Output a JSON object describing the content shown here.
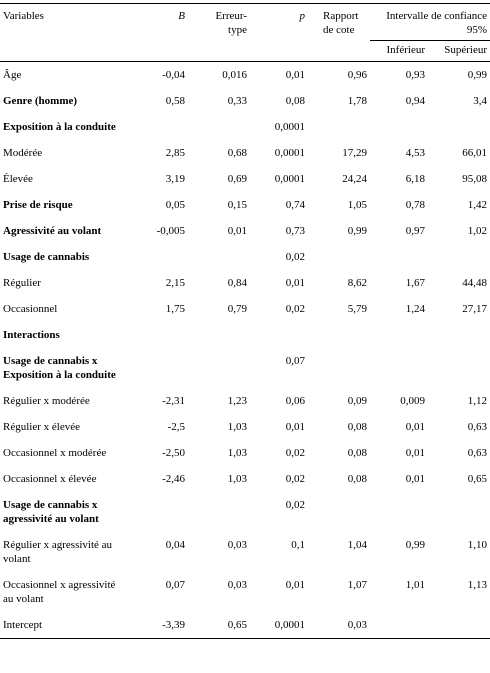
{
  "header": {
    "variables": "Variables",
    "b": "B",
    "se": "Erreur-type",
    "p": "p",
    "or": "Rapport de cote",
    "ci": "Intervalle de confiance 95%",
    "lower": "Inférieur",
    "upper": "Supérieur"
  },
  "table": {
    "rows": [
      {
        "cells": [
          "Âge",
          "-0,04",
          "0,016",
          "0,01",
          "0,96",
          "0,93",
          "0,99"
        ],
        "bold": false
      },
      {
        "cells": [
          "Genre (homme)",
          "0,58",
          "0,33",
          "0,08",
          "1,78",
          "0,94",
          "3,4"
        ],
        "bold": true
      },
      {
        "cells": [
          "Exposition à la conduite",
          null,
          null,
          "0,0001",
          null,
          null,
          null
        ],
        "bold": true
      },
      {
        "cells": [
          "Modérée",
          "2,85",
          "0,68",
          "0,0001",
          "17,29",
          "4,53",
          "66,01"
        ],
        "bold": false
      },
      {
        "cells": [
          "Élevée",
          "3,19",
          "0,69",
          "0,0001",
          "24,24",
          "6,18",
          "95,08"
        ],
        "bold": false
      },
      {
        "cells": [
          "Prise de risque",
          "0,05",
          "0,15",
          "0,74",
          "1,05",
          "0,78",
          "1,42"
        ],
        "bold": true
      },
      {
        "cells": [
          "Agressivité au volant",
          "-0,005",
          "0,01",
          "0,73",
          "0,99",
          "0,97",
          "1,02"
        ],
        "bold": true
      },
      {
        "cells": [
          "Usage de cannabis",
          null,
          null,
          "0,02",
          null,
          null,
          null
        ],
        "bold": true
      },
      {
        "cells": [
          "Régulier",
          "2,15",
          "0,84",
          "0,01",
          "8,62",
          "1,67",
          "44,48"
        ],
        "bold": false
      },
      {
        "cells": [
          "Occasionnel",
          "1,75",
          "0,79",
          "0,02",
          "5,79",
          "1,24",
          "27,17"
        ],
        "bold": false
      },
      {
        "cells": [
          "Interactions",
          null,
          null,
          null,
          null,
          null,
          null
        ],
        "bold": true
      },
      {
        "cells": [
          "Usage de cannabis x Exposition à la conduite",
          null,
          null,
          "0,07",
          null,
          null,
          null
        ],
        "bold": true
      },
      {
        "cells": [
          "Régulier x modérée",
          "-2,31",
          "1,23",
          "0,06",
          "0,09",
          "0,009",
          "1,12"
        ],
        "bold": false
      },
      {
        "cells": [
          "Régulier x élevée",
          "-2,5",
          "1,03",
          "0,01",
          "0,08",
          "0,01",
          "0,63"
        ],
        "bold": false
      },
      {
        "cells": [
          "Occasionnel x modérée",
          "-2,50",
          "1,03",
          "0,02",
          "0,08",
          "0,01",
          "0,63"
        ],
        "bold": false
      },
      {
        "cells": [
          "Occasionnel x élevée",
          "-2,46",
          "1,03",
          "0,02",
          "0,08",
          "0,01",
          "0,65"
        ],
        "bold": false
      },
      {
        "cells": [
          "Usage de cannabis x agressivité au volant",
          null,
          null,
          "0,02",
          null,
          null,
          null
        ],
        "bold": true
      },
      {
        "cells": [
          "Régulier x agressivité au volant",
          "0,04",
          "0,03",
          "0,1",
          "1,04",
          "0,99",
          "1,10"
        ],
        "bold": false
      },
      {
        "cells": [
          "Occasionnel x agressivité au volant",
          "0,07",
          "0,03",
          "0,01",
          "1,07",
          "1,01",
          "1,13"
        ],
        "bold": false
      },
      {
        "cells": [
          "Intercept",
          "-3,39",
          "0,65",
          "0,0001",
          "0,03",
          null,
          null
        ],
        "bold": false
      }
    ]
  }
}
